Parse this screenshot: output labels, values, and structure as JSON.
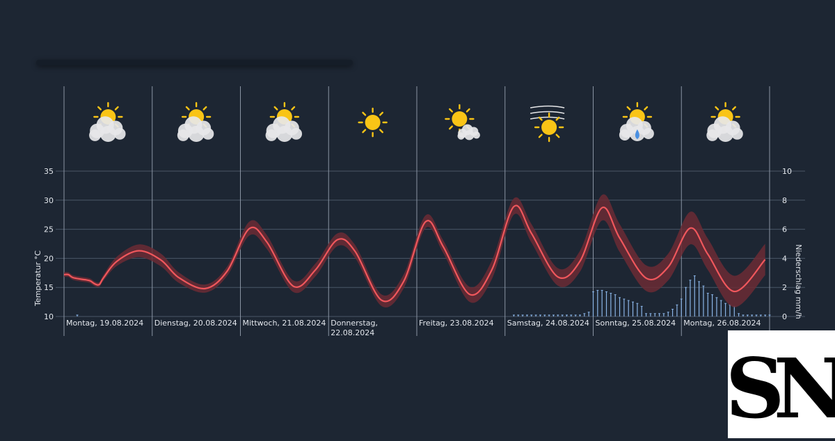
{
  "chart_data": {
    "type": "line",
    "ylabel_left": "Temperatur °C",
    "ylabel_right": "Niederschlag mm/h",
    "y_left_ticks": [
      "35",
      "30",
      "25",
      "20",
      "15",
      "10"
    ],
    "y_right_ticks": [
      "10",
      "8",
      "6",
      "4",
      "2",
      "0"
    ],
    "ylim_left": [
      10,
      35
    ],
    "ylim_right": [
      0,
      10
    ],
    "days": [
      {
        "label": [
          "Montag, 19.08.2024"
        ],
        "icon": "sun-cloud-icon"
      },
      {
        "label": [
          "Dienstag, 20.08.2024"
        ],
        "icon": "sun-cloud-icon"
      },
      {
        "label": [
          "Mittwoch, 21.08.2024"
        ],
        "icon": "sun-cloud-icon"
      },
      {
        "label": [
          "Donnerstag,",
          "22.08.2024"
        ],
        "icon": "sun-icon"
      },
      {
        "label": [
          "Freitag, 23.08.2024"
        ],
        "icon": "sun-small-cloud-icon"
      },
      {
        "label": [
          "Samstag, 24.08.2024"
        ],
        "icon": "sun-wind-icon"
      },
      {
        "label": [
          "Sonntag, 25.08.2024"
        ],
        "icon": "sun-cloud-rain-icon"
      },
      {
        "label": [
          "Montag, 26.08.2024"
        ],
        "icon": "sun-cloud-icon"
      }
    ],
    "temperature_series": {
      "name": "Temperatur",
      "color": "#f0575c",
      "band_color": "#6b2b35",
      "x_days": [
        0.0,
        0.05,
        0.1,
        0.2,
        0.25,
        0.3,
        0.35,
        0.4,
        0.45,
        0.6,
        0.85,
        1.1,
        1.3,
        1.6,
        1.85,
        2.1,
        2.3,
        2.6,
        2.85,
        3.1,
        3.3,
        3.6,
        3.85,
        4.1,
        4.3,
        4.6,
        4.85,
        5.1,
        5.3,
        5.6,
        5.85,
        6.1,
        6.3,
        6.6,
        6.85,
        7.1,
        7.3,
        7.6,
        7.95
      ],
      "values": [
        17.2,
        17.2,
        16.7,
        16.4,
        16.3,
        16.1,
        15.6,
        15.5,
        16.7,
        19.5,
        21.3,
        19.7,
        16.7,
        14.8,
        17.8,
        25.1,
        22.8,
        15.2,
        18.0,
        23.2,
        21.2,
        12.8,
        16.0,
        26.3,
        22.0,
        13.8,
        18.0,
        28.9,
        24.3,
        16.8,
        19.5,
        28.7,
        23.5,
        16.6,
        18.5,
        25.2,
        20.7,
        14.3,
        19.8
      ],
      "band_halfwidth": [
        0.4,
        0.4,
        0.4,
        0.4,
        0.4,
        0.4,
        0.4,
        0.4,
        0.5,
        0.8,
        1.1,
        1.1,
        0.9,
        0.7,
        0.8,
        1.2,
        1.2,
        1.0,
        1.1,
        1.1,
        1.1,
        1.0,
        1.2,
        1.1,
        1.1,
        1.3,
        1.6,
        1.4,
        1.6,
        1.5,
        1.8,
        2.2,
        2.4,
        2.2,
        2.3,
        2.8,
        2.7,
        2.7,
        2.7
      ]
    },
    "precipitation_series": {
      "name": "Niederschlag",
      "color": "#8ab4e6",
      "x_days": [
        0.15,
        5.1,
        5.15,
        5.2,
        5.25,
        5.3,
        5.35,
        5.4,
        5.45,
        5.5,
        5.55,
        5.6,
        5.65,
        5.7,
        5.75,
        5.8,
        5.85,
        5.9,
        5.95,
        6.0,
        6.05,
        6.1,
        6.15,
        6.2,
        6.25,
        6.3,
        6.35,
        6.4,
        6.45,
        6.5,
        6.55,
        6.6,
        6.65,
        6.7,
        6.75,
        6.8,
        6.85,
        6.9,
        6.95,
        7.0,
        7.05,
        7.1,
        7.15,
        7.2,
        7.25,
        7.3,
        7.35,
        7.4,
        7.45,
        7.5,
        7.55,
        7.6,
        7.65,
        7.7,
        7.75,
        7.8,
        7.85,
        7.9,
        7.95,
        8.0
      ],
      "values": [
        0.1,
        0.1,
        0.1,
        0.1,
        0.1,
        0.1,
        0.1,
        0.1,
        0.1,
        0.1,
        0.1,
        0.1,
        0.1,
        0.1,
        0.1,
        0.1,
        0.1,
        0.2,
        0.3,
        1.7,
        1.8,
        1.8,
        1.7,
        1.6,
        1.5,
        1.3,
        1.2,
        1.1,
        1.0,
        0.9,
        0.7,
        0.2,
        0.2,
        0.2,
        0.2,
        0.2,
        0.3,
        0.5,
        0.8,
        1.2,
        2.0,
        2.5,
        2.8,
        2.4,
        2.1,
        1.6,
        1.5,
        1.3,
        1.1,
        0.9,
        0.8,
        0.7,
        0.2,
        0.1,
        0.1,
        0.1,
        0.1,
        0.1,
        0.1,
        0.1
      ]
    },
    "grid": true,
    "legend": "none"
  },
  "colors": {
    "background": "#1d2633",
    "grid": "#4a5667",
    "text": "#e3e7ed",
    "sun": "#f9c416",
    "cloud": "#e7e7e9",
    "rain_drop": "#4a90e2"
  },
  "logo": {
    "text": "SN"
  }
}
